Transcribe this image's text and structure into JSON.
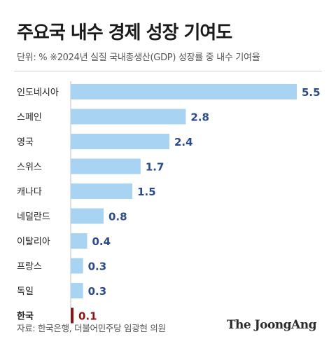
{
  "header": {
    "title": "주요국 내수 경제 성장 기여도",
    "subtitle": "단위: %   ※2024년 실질 국내총생산(GDP) 성장률 중 내수 기여율"
  },
  "chart_data": {
    "type": "bar",
    "orientation": "horizontal",
    "categories": [
      "인도네시아",
      "스페인",
      "영국",
      "스위스",
      "캐나다",
      "네덜란드",
      "이탈리아",
      "프랑스",
      "독일",
      "한국"
    ],
    "values": [
      5.5,
      2.8,
      2.4,
      1.7,
      1.5,
      0.8,
      0.4,
      0.3,
      0.3,
      0.1
    ],
    "value_labels": [
      "5.5",
      "2.8",
      "2.4",
      "1.7",
      "1.5",
      "0.8",
      "0.4",
      "0.3",
      "0.3",
      "0.1"
    ],
    "highlight_category": "한국",
    "xlim": [
      0,
      5.5
    ],
    "grid": false,
    "colors": {
      "bar": "#a9d3f2",
      "highlight_bar": "#8c1414",
      "value_text": "#2c4a8a",
      "highlight_text": "#8c1414",
      "category_text": "#222222",
      "axis": "#bdbdbd"
    }
  },
  "footer": {
    "source": "자료: 한국은행, 더불어민주당 임광현 의원",
    "brand": "The JoongAng"
  }
}
